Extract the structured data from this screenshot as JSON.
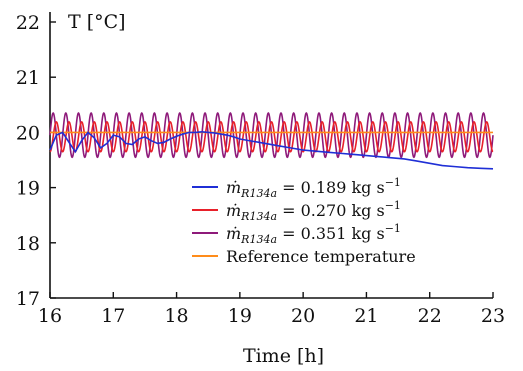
{
  "chart_data": {
    "type": "line",
    "title": "",
    "xlabel": "Time [h]",
    "ylabel": "T [°C]",
    "xlim": [
      16,
      23
    ],
    "ylim": [
      17,
      22
    ],
    "x_ticks": [
      16,
      17,
      18,
      19,
      20,
      21,
      22,
      23
    ],
    "y_ticks": [
      17,
      18,
      19,
      20,
      21,
      22
    ],
    "grid": false,
    "legend_position": "lower-right",
    "series": [
      {
        "name": "ṁR134a = 0.189 kg s⁻¹",
        "legend_prefix": "ṁ",
        "legend_subscript": "R134a",
        "legend_value": " = 0.189 kg s",
        "legend_exponent": "−1",
        "color": "#1f2fd6",
        "x": [
          16.0,
          16.1,
          16.2,
          16.3,
          16.4,
          16.5,
          16.6,
          16.7,
          16.8,
          16.9,
          17.0,
          17.1,
          17.2,
          17.3,
          17.4,
          17.5,
          17.6,
          17.7,
          17.8,
          17.9,
          18.0,
          18.1,
          18.2,
          18.3,
          18.4,
          18.5,
          18.6,
          18.7,
          18.8,
          18.9,
          19.0,
          19.2,
          19.4,
          19.6,
          19.8,
          20.0,
          20.2,
          20.4,
          20.6,
          20.8,
          21.0,
          21.2,
          21.4,
          21.6,
          21.8,
          22.0,
          22.2,
          22.4,
          22.6,
          22.8,
          23.0
        ],
        "y": [
          19.68,
          19.95,
          20.0,
          19.82,
          19.65,
          19.85,
          20.0,
          19.9,
          19.72,
          19.8,
          19.95,
          19.92,
          19.8,
          19.78,
          19.88,
          19.92,
          19.85,
          19.8,
          19.82,
          19.88,
          19.93,
          19.97,
          20.0,
          20.0,
          20.01,
          20.0,
          19.99,
          19.97,
          19.95,
          19.92,
          19.88,
          19.84,
          19.8,
          19.76,
          19.72,
          19.68,
          19.66,
          19.64,
          19.62,
          19.6,
          19.58,
          19.56,
          19.54,
          19.52,
          19.48,
          19.44,
          19.4,
          19.38,
          19.36,
          19.35,
          19.34
        ]
      },
      {
        "name": "ṁR134a = 0.270 kg s⁻¹",
        "legend_prefix": "ṁ",
        "legend_subscript": "R134a",
        "legend_value": " = 0.270 kg s",
        "legend_exponent": "−1",
        "color": "#e8202a",
        "oscillation": {
          "center": 19.92,
          "amplitude": 0.27,
          "period_h": 0.2,
          "phase_h": 0.05
        },
        "x": [
          16.0,
          23.0
        ],
        "y": [
          19.92,
          19.92
        ]
      },
      {
        "name": "ṁR134a = 0.351 kg s⁻¹",
        "legend_prefix": "ṁ",
        "legend_subscript": "R134a",
        "legend_value": " = 0.351 kg s",
        "legend_exponent": "−1",
        "color": "#8e1a7a",
        "oscillation": {
          "center": 19.95,
          "amplitude": 0.4,
          "period_h": 0.2,
          "phase_h": 0.0
        },
        "x": [
          16.0,
          23.0
        ],
        "y": [
          19.95,
          19.95
        ]
      },
      {
        "name": "Reference temperature",
        "legend_prefix": "",
        "legend_subscript": "",
        "legend_value": "Reference temperature",
        "legend_exponent": "",
        "color": "#ff8c1a",
        "x": [
          16.0,
          23.0
        ],
        "y": [
          20.0,
          20.0
        ]
      }
    ]
  }
}
